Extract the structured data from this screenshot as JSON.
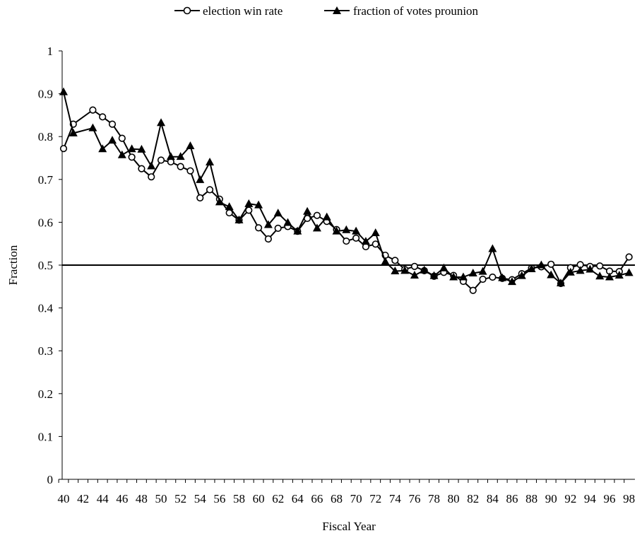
{
  "chart_data": {
    "type": "line",
    "xlabel": "Fiscal Year",
    "ylabel": "Fraction",
    "ylim": [
      0,
      1
    ],
    "yticks": [
      "0",
      "0.1",
      "0.2",
      "0.3",
      "0.4",
      "0.5",
      "0.6",
      "0.7",
      "0.8",
      "0.9",
      "1"
    ],
    "xticks": [
      "40",
      "42",
      "44",
      "46",
      "48",
      "50",
      "52",
      "54",
      "56",
      "58",
      "60",
      "62",
      "64",
      "66",
      "68",
      "70",
      "72",
      "74",
      "76",
      "78",
      "80",
      "82",
      "84",
      "86",
      "88",
      "90",
      "92",
      "94",
      "96",
      "98"
    ],
    "x": [
      40,
      41,
      42,
      43,
      44,
      45,
      46,
      47,
      48,
      49,
      50,
      51,
      52,
      53,
      54,
      55,
      56,
      57,
      58,
      59,
      60,
      61,
      62,
      63,
      64,
      65,
      66,
      67,
      68,
      69,
      70,
      71,
      72,
      73,
      74,
      75,
      76,
      77,
      78,
      79,
      80,
      81,
      82,
      83,
      84,
      85,
      86,
      87,
      88,
      89,
      90,
      91,
      92,
      93,
      94,
      95,
      96,
      97,
      98
    ],
    "reference_line": 0.5,
    "legend_position": "top-center",
    "grid": false,
    "series": [
      {
        "name": "election win rate",
        "marker": "open-circle",
        "values": [
          0.772,
          0.829,
          null,
          0.862,
          0.846,
          0.829,
          0.796,
          0.752,
          0.725,
          0.706,
          0.745,
          0.741,
          0.73,
          0.72,
          0.657,
          0.676,
          0.654,
          0.622,
          0.605,
          0.628,
          0.587,
          0.561,
          0.586,
          0.59,
          0.579,
          0.609,
          0.616,
          0.602,
          0.583,
          0.556,
          0.563,
          0.543,
          0.549,
          0.523,
          0.511,
          0.49,
          0.497,
          0.487,
          0.474,
          0.483,
          0.476,
          0.462,
          0.441,
          0.467,
          0.472,
          0.469,
          0.466,
          0.48,
          0.493,
          0.496,
          0.502,
          0.457,
          0.494,
          0.501,
          0.497,
          0.498,
          0.486,
          0.485,
          0.519
        ]
      },
      {
        "name": "fraction of votes prounion",
        "marker": "filled-triangle",
        "values": [
          0.904,
          0.808,
          null,
          0.82,
          0.771,
          0.791,
          0.757,
          0.771,
          0.77,
          0.731,
          0.832,
          0.753,
          0.753,
          0.778,
          0.699,
          0.74,
          0.647,
          0.636,
          0.605,
          0.643,
          0.64,
          0.594,
          0.621,
          0.599,
          0.579,
          0.625,
          0.586,
          0.612,
          0.579,
          0.582,
          0.579,
          0.555,
          0.575,
          0.508,
          0.486,
          0.487,
          0.476,
          0.488,
          0.475,
          0.493,
          0.472,
          0.472,
          0.481,
          0.485,
          0.538,
          0.47,
          0.461,
          0.475,
          0.491,
          0.5,
          0.477,
          0.458,
          0.483,
          0.487,
          0.49,
          0.474,
          0.472,
          0.476,
          0.482
        ]
      }
    ]
  }
}
